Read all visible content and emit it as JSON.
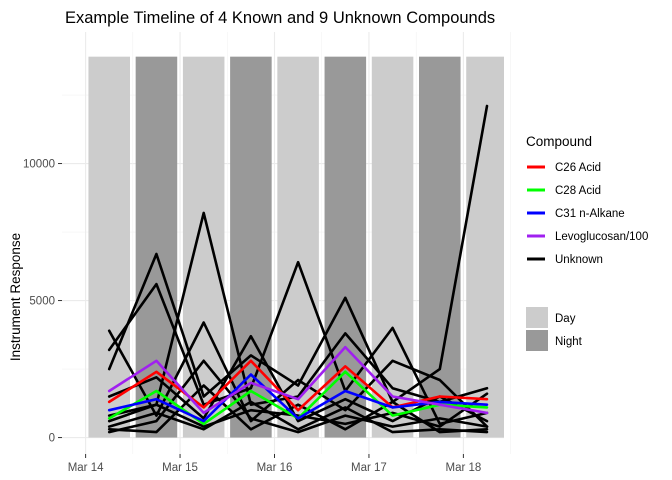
{
  "chart_data": {
    "type": "line",
    "title": "Example Timeline of 4 Known and 9 Unknown Compounds",
    "xlabel": "",
    "ylabel": "Instrument Response",
    "x_ticks": [
      "Mar 14",
      "Mar 15",
      "Mar 16",
      "Mar 17",
      "Mar 18"
    ],
    "y_ticks": [
      0,
      5000,
      10000
    ],
    "xlim": [
      -0.25,
      4.43
    ],
    "ylim": [
      -600,
      14800
    ],
    "grid": true,
    "legend_placement": "right",
    "periods": [
      {
        "type": "Day",
        "start": 0.03,
        "end": 0.47
      },
      {
        "type": "Night",
        "start": 0.53,
        "end": 0.97
      },
      {
        "type": "Day",
        "start": 1.03,
        "end": 1.47
      },
      {
        "type": "Night",
        "start": 1.53,
        "end": 1.97
      },
      {
        "type": "Day",
        "start": 2.03,
        "end": 2.47
      },
      {
        "type": "Night",
        "start": 2.53,
        "end": 2.97
      },
      {
        "type": "Day",
        "start": 3.03,
        "end": 3.47
      },
      {
        "type": "Night",
        "start": 3.53,
        "end": 3.97
      },
      {
        "type": "Day",
        "start": 4.03,
        "end": 4.43
      }
    ],
    "period_top": 13900,
    "x": [
      0.25,
      0.75,
      1.25,
      1.75,
      2.25,
      2.75,
      3.25,
      3.75,
      4.25
    ],
    "series": [
      {
        "name": "C26 Acid",
        "color": "#ff0000",
        "values": [
          1300,
          2400,
          1100,
          2800,
          1000,
          2600,
          1100,
          1500,
          1400
        ]
      },
      {
        "name": "C28 Acid",
        "color": "#00ff00",
        "values": [
          700,
          1700,
          500,
          1700,
          700,
          2400,
          800,
          1200,
          1100
        ]
      },
      {
        "name": "C31 n-Alkane",
        "color": "#0000ff",
        "values": [
          1000,
          1400,
          600,
          2300,
          700,
          1700,
          1100,
          1300,
          1200
        ]
      },
      {
        "name": "Levoglucosan/100",
        "color": "#a020f0",
        "values": [
          1700,
          2800,
          900,
          2000,
          1400,
          3300,
          1500,
          1200,
          900
        ]
      }
    ],
    "unknown_series": [
      {
        "values": [
          2500,
          6700,
          1500,
          3000,
          1900,
          5100,
          1300,
          2500,
          12100
        ]
      },
      {
        "values": [
          3200,
          5600,
          1200,
          1800,
          6400,
          1700,
          4000,
          500,
          900
        ]
      },
      {
        "values": [
          800,
          1200,
          8200,
          1200,
          1500,
          3800,
          1800,
          1300,
          1800
        ]
      },
      {
        "values": [
          3900,
          800,
          4200,
          600,
          2100,
          1000,
          2800,
          2100,
          400
        ]
      },
      {
        "values": [
          1500,
          2200,
          700,
          3700,
          600,
          1400,
          600,
          1500,
          600
        ]
      },
      {
        "values": [
          400,
          900,
          300,
          1300,
          300,
          1100,
          200,
          300,
          200
        ]
      },
      {
        "values": [
          200,
          600,
          2800,
          700,
          200,
          800,
          400,
          700,
          400
        ]
      },
      {
        "values": [
          600,
          1200,
          400,
          1000,
          800,
          500,
          900,
          400,
          1600
        ]
      },
      {
        "values": [
          300,
          200,
          1900,
          300,
          1200,
          300,
          1300,
          200,
          300
        ]
      }
    ],
    "legend": {
      "title": "Compound",
      "line_entries": [
        {
          "label": "C26 Acid",
          "color": "#ff0000"
        },
        {
          "label": "C28 Acid",
          "color": "#00ff00"
        },
        {
          "label": "C31 n-Alkane",
          "color": "#0000ff"
        },
        {
          "label": "Levoglucosan/100",
          "color": "#a020f0"
        },
        {
          "label": "Unknown",
          "color": "#000000"
        }
      ],
      "fill_entries": [
        {
          "label": "Day",
          "color": "#cccccc"
        },
        {
          "label": "Night",
          "color": "#999999"
        }
      ]
    }
  }
}
